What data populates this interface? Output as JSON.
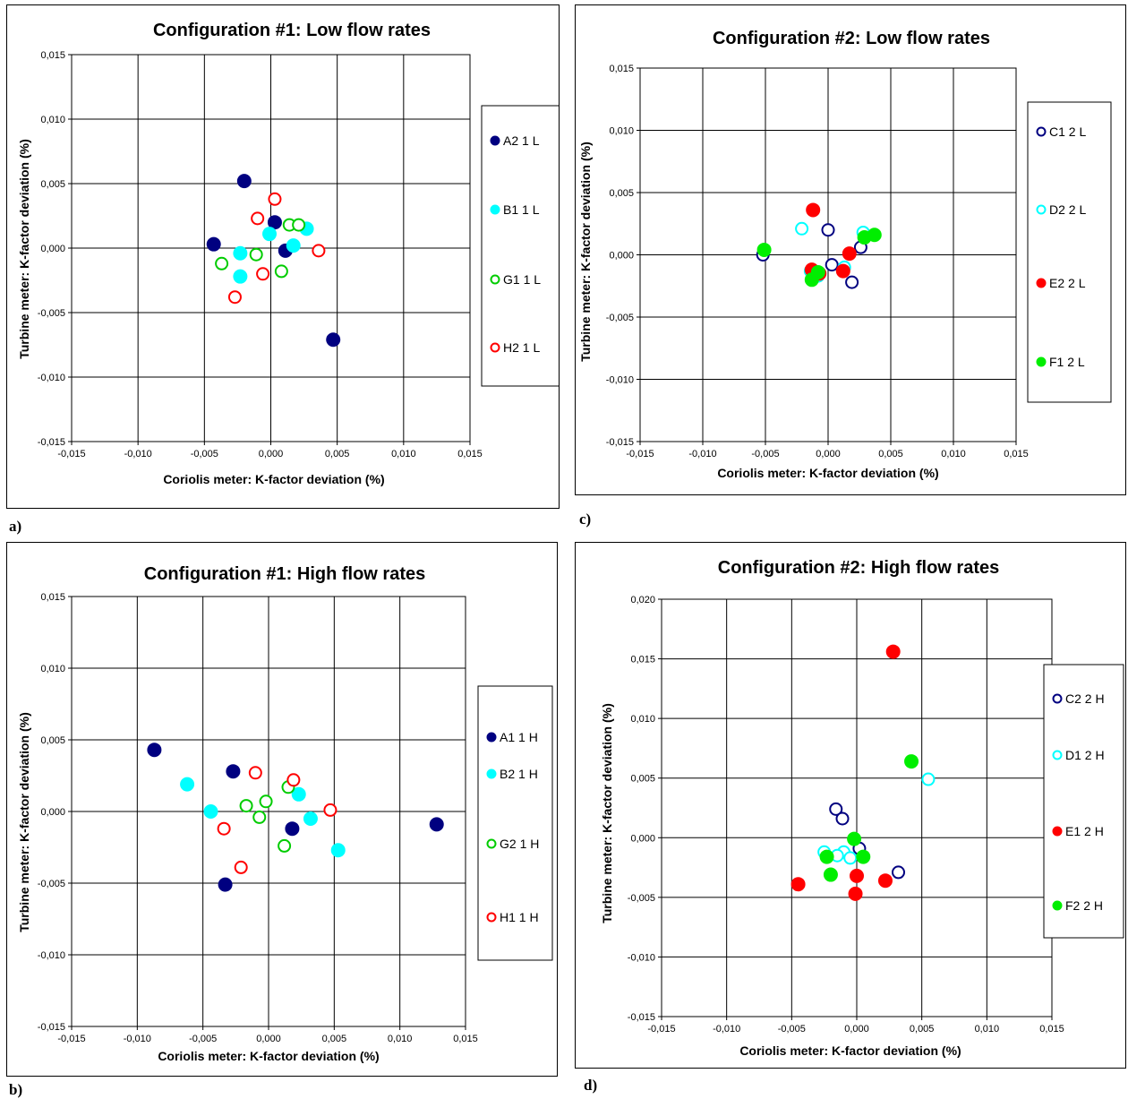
{
  "panel_labels": [
    "a)",
    "c)",
    "b)",
    "d)"
  ],
  "chart_data": [
    {
      "type": "scatter",
      "title": "Configuration #1: Low flow rates",
      "xlabel": "Coriolis meter: K-factor deviation  (%)",
      "ylabel": "Turbine meter: K-factor deviation  (%)",
      "xlim": [
        -0.015,
        0.015
      ],
      "ylim": [
        -0.015,
        0.015
      ],
      "xticks": [
        -0.015,
        -0.01,
        -0.005,
        0.0,
        0.005,
        0.01,
        0.015
      ],
      "yticks": [
        -0.015,
        -0.01,
        -0.005,
        0.0,
        0.005,
        0.01,
        0.015
      ],
      "xtick_labels": [
        "-0,015",
        "-0,010",
        "-0,005",
        "0,000",
        "0,005",
        "0,010",
        "0,015"
      ],
      "ytick_labels": [
        "-0,015",
        "-0,010",
        "-0,005",
        "0,000",
        "0,005",
        "0,010",
        "0,015"
      ],
      "grid": true,
      "legend_position": "right",
      "series": [
        {
          "name": "A2 1 L",
          "color": "#000080",
          "filled": true,
          "points": [
            [
              -0.002,
              0.0052
            ],
            [
              -0.0043,
              0.0003
            ],
            [
              0.0003,
              0.002
            ],
            [
              0.0011,
              -0.0002
            ],
            [
              0.0047,
              -0.0071
            ]
          ]
        },
        {
          "name": "B1 1 L",
          "color": "#00ffff",
          "filled": true,
          "points": [
            [
              -0.0023,
              -0.0004
            ],
            [
              -0.0023,
              -0.0022
            ],
            [
              -0.0001,
              0.0011
            ],
            [
              0.0017,
              0.0002
            ],
            [
              0.0027,
              0.0015
            ]
          ]
        },
        {
          "name": "G1 1 L",
          "color": "#00cc00",
          "filled": false,
          "points": [
            [
              -0.0037,
              -0.0012
            ],
            [
              -0.0011,
              -0.0005
            ],
            [
              0.0008,
              -0.0018
            ],
            [
              0.0014,
              0.0018
            ],
            [
              0.0021,
              0.0018
            ]
          ]
        },
        {
          "name": "H2 1 L",
          "color": "#ff0000",
          "filled": false,
          "points": [
            [
              0.0003,
              0.0038
            ],
            [
              -0.001,
              0.0023
            ],
            [
              -0.0006,
              -0.002
            ],
            [
              -0.0027,
              -0.0038
            ],
            [
              0.0036,
              -0.0002
            ]
          ]
        }
      ]
    },
    {
      "type": "scatter",
      "title": "Configuration #2: Low flow rates",
      "xlabel": "Coriolis meter: K-factor deviation  (%)",
      "ylabel": "Turbine meter: K-factor deviation  (%)",
      "xlim": [
        -0.015,
        0.015
      ],
      "ylim": [
        -0.015,
        0.015
      ],
      "xticks": [
        -0.015,
        -0.01,
        -0.005,
        0.0,
        0.005,
        0.01,
        0.015
      ],
      "yticks": [
        -0.015,
        -0.01,
        -0.005,
        0.0,
        0.005,
        0.01,
        0.015
      ],
      "xtick_labels": [
        "-0,015",
        "-0,010",
        "-0,005",
        "0,000",
        "0,005",
        "0,010",
        "0,015"
      ],
      "ytick_labels": [
        "-0,015",
        "-0,010",
        "-0,005",
        "0,000",
        "0,005",
        "0,010",
        "0,015"
      ],
      "grid": true,
      "legend_position": "right",
      "series": [
        {
          "name": "C1 2 L",
          "color": "#000080",
          "filled": false,
          "points": [
            [
              -0.0052,
              0.0
            ],
            [
              0.0,
              0.002
            ],
            [
              0.0003,
              -0.0008
            ],
            [
              0.0019,
              -0.0022
            ],
            [
              0.0026,
              0.0006
            ]
          ]
        },
        {
          "name": "D2 2 L",
          "color": "#00ffff",
          "filled": false,
          "points": [
            [
              -0.0021,
              0.0021
            ],
            [
              -0.0014,
              -0.0013
            ],
            [
              0.0013,
              -0.001
            ],
            [
              0.0028,
              0.0018
            ],
            [
              -0.0008,
              -0.0017
            ]
          ]
        },
        {
          "name": "E2 2 L",
          "color": "#ff0000",
          "filled": true,
          "points": [
            [
              -0.0012,
              0.0036
            ],
            [
              -0.0013,
              -0.0012
            ],
            [
              0.0017,
              0.0001
            ],
            [
              0.0012,
              -0.0013
            ],
            [
              -0.0007,
              -0.0015
            ]
          ]
        },
        {
          "name": "F1 2 L",
          "color": "#00ee00",
          "filled": true,
          "points": [
            [
              -0.0051,
              0.0004
            ],
            [
              -0.0013,
              -0.002
            ],
            [
              -0.0008,
              -0.0014
            ],
            [
              0.0029,
              0.0014
            ],
            [
              0.0037,
              0.0016
            ]
          ]
        }
      ]
    },
    {
      "type": "scatter",
      "title": "Configuration #1: High flow rates",
      "xlabel": "Coriolis meter: K-factor deviation  (%)",
      "ylabel": "Turbine meter: K-factor deviation  (%)",
      "xlim": [
        -0.015,
        0.015
      ],
      "ylim": [
        -0.015,
        0.015
      ],
      "xticks": [
        -0.015,
        -0.01,
        -0.005,
        0.0,
        0.005,
        0.01,
        0.015
      ],
      "yticks": [
        -0.015,
        -0.01,
        -0.005,
        0.0,
        0.005,
        0.01,
        0.015
      ],
      "xtick_labels": [
        "-0,015",
        "-0,010",
        "-0,005",
        "0,000",
        "0,005",
        "0,010",
        "0,015"
      ],
      "ytick_labels": [
        "-0,015",
        "-0,010",
        "-0,005",
        "0,000",
        "0,005",
        "0,010",
        "0,015"
      ],
      "grid": true,
      "legend_position": "right",
      "series": [
        {
          "name": "A1 1 H",
          "color": "#000080",
          "filled": true,
          "points": [
            [
              -0.0087,
              0.0043
            ],
            [
              -0.0027,
              0.0028
            ],
            [
              0.0018,
              -0.0012
            ],
            [
              -0.0033,
              -0.0051
            ],
            [
              0.0128,
              -0.0009
            ]
          ]
        },
        {
          "name": "B2 1 H",
          "color": "#00ffff",
          "filled": true,
          "points": [
            [
              -0.0062,
              0.0019
            ],
            [
              -0.0044,
              0.0
            ],
            [
              0.0023,
              0.0012
            ],
            [
              0.0032,
              -0.0005
            ],
            [
              0.0053,
              -0.0027
            ]
          ]
        },
        {
          "name": "G2 1 H",
          "color": "#00cc00",
          "filled": false,
          "points": [
            [
              -0.0017,
              0.0004
            ],
            [
              -0.0007,
              -0.0004
            ],
            [
              -0.0002,
              0.0007
            ],
            [
              0.0012,
              -0.0024
            ],
            [
              0.0015,
              0.0017
            ]
          ]
        },
        {
          "name": "H1 1 H",
          "color": "#ff0000",
          "filled": false,
          "points": [
            [
              -0.001,
              0.0027
            ],
            [
              0.0019,
              0.0022
            ],
            [
              -0.0034,
              -0.0012
            ],
            [
              -0.0021,
              -0.0039
            ],
            [
              0.0047,
              0.0001
            ]
          ]
        }
      ]
    },
    {
      "type": "scatter",
      "title": "Configuration #2: High flow rates",
      "xlabel": "Coriolis meter: K-factor deviation  (%)",
      "ylabel": "Turbine meter: K-factor deviation  (%)",
      "xlim": [
        -0.015,
        0.015
      ],
      "ylim": [
        -0.015,
        0.02
      ],
      "xticks": [
        -0.015,
        -0.01,
        -0.005,
        0.0,
        0.005,
        0.01,
        0.015
      ],
      "yticks": [
        -0.015,
        -0.01,
        -0.005,
        0.0,
        0.005,
        0.01,
        0.015,
        0.02
      ],
      "xtick_labels": [
        "-0,015",
        "-0,010",
        "-0,005",
        "0,000",
        "0,005",
        "0,010",
        "0,015"
      ],
      "ytick_labels": [
        "-0,015",
        "-0,010",
        "-0,005",
        "0,000",
        "0,005",
        "0,010",
        "0,015",
        "0,020"
      ],
      "grid": true,
      "legend_position": "right",
      "series": [
        {
          "name": "C2 2 H",
          "color": "#000080",
          "filled": false,
          "points": [
            [
              -0.0016,
              0.0024
            ],
            [
              -0.0011,
              0.0016
            ],
            [
              0.0002,
              -0.0009
            ],
            [
              0.0032,
              -0.0029
            ]
          ]
        },
        {
          "name": "D1 2 H",
          "color": "#00ffff",
          "filled": false,
          "points": [
            [
              0.0055,
              0.0049
            ],
            [
              -0.0025,
              -0.0012
            ],
            [
              -0.001,
              -0.0012
            ],
            [
              -0.0005,
              -0.0017
            ],
            [
              -0.0015,
              -0.0015
            ]
          ]
        },
        {
          "name": "E1 2 H",
          "color": "#ff0000",
          "filled": true,
          "points": [
            [
              0.0028,
              0.0156
            ],
            [
              -0.0045,
              -0.0039
            ],
            [
              0.0,
              -0.0032
            ],
            [
              -0.0001,
              -0.0047
            ],
            [
              0.0022,
              -0.0036
            ]
          ]
        },
        {
          "name": "F2 2 H",
          "color": "#00ee00",
          "filled": true,
          "points": [
            [
              0.0042,
              0.0064
            ],
            [
              -0.0002,
              -0.0001
            ],
            [
              -0.0023,
              -0.0016
            ],
            [
              0.0005,
              -0.0016
            ],
            [
              -0.002,
              -0.0031
            ]
          ]
        }
      ]
    }
  ]
}
